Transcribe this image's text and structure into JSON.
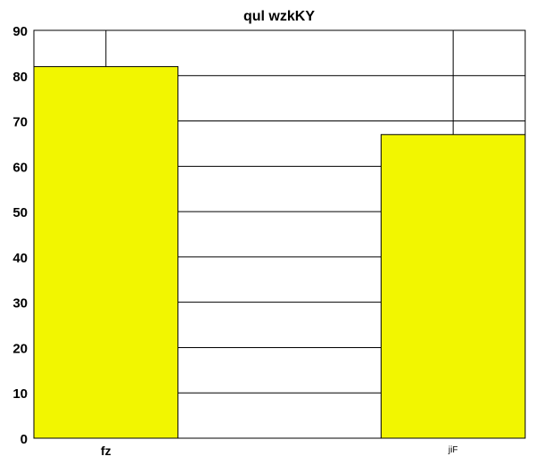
{
  "chart_data": {
    "type": "bar",
    "title": "qul wzkKY",
    "categories": [
      "fz",
      "jiF"
    ],
    "values": [
      82,
      67
    ],
    "xlabel": "",
    "ylabel": "",
    "ylim": [
      0,
      90
    ],
    "yticks": [
      0,
      10,
      20,
      30,
      40,
      50,
      60,
      70,
      80,
      90
    ],
    "grid": true,
    "legend": "none",
    "bar_color": "#f2f600",
    "grid_color": "#000000",
    "background_color": "#ffffff"
  }
}
